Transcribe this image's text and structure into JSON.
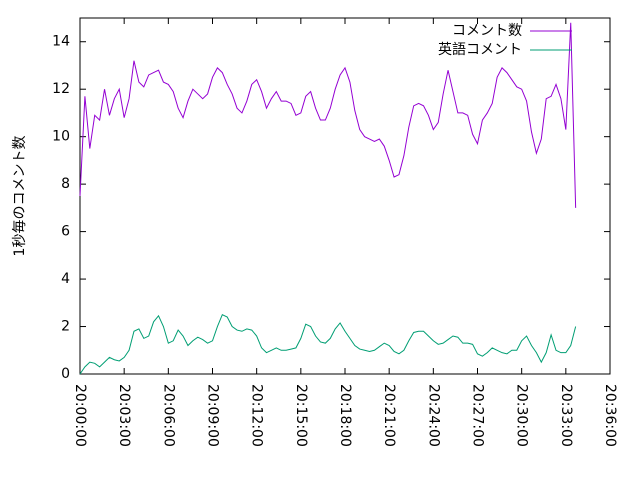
{
  "chart_data": {
    "type": "line",
    "y_label": "1秒毎のコメント数",
    "x": [
      "20:00:00",
      "20:00:20",
      "20:00:40",
      "20:01:00",
      "20:01:20",
      "20:01:40",
      "20:02:00",
      "20:02:20",
      "20:02:40",
      "20:03:00",
      "20:03:20",
      "20:03:40",
      "20:04:00",
      "20:04:20",
      "20:04:40",
      "20:05:00",
      "20:05:20",
      "20:05:40",
      "20:06:00",
      "20:06:20",
      "20:06:40",
      "20:07:00",
      "20:07:20",
      "20:07:40",
      "20:08:00",
      "20:08:20",
      "20:08:40",
      "20:09:00",
      "20:09:20",
      "20:09:40",
      "20:10:00",
      "20:10:20",
      "20:10:40",
      "20:11:00",
      "20:11:20",
      "20:11:40",
      "20:12:00",
      "20:12:20",
      "20:12:40",
      "20:13:00",
      "20:13:20",
      "20:13:40",
      "20:14:00",
      "20:14:20",
      "20:14:40",
      "20:15:00",
      "20:15:20",
      "20:15:40",
      "20:16:00",
      "20:16:20",
      "20:16:40",
      "20:17:00",
      "20:17:20",
      "20:17:40",
      "20:18:00",
      "20:18:20",
      "20:18:40",
      "20:19:00",
      "20:19:20",
      "20:19:40",
      "20:20:00",
      "20:20:20",
      "20:20:40",
      "20:21:00",
      "20:21:20",
      "20:21:40",
      "20:22:00",
      "20:22:20",
      "20:22:40",
      "20:23:00",
      "20:23:20",
      "20:23:40",
      "20:24:00",
      "20:24:20",
      "20:24:40",
      "20:25:00",
      "20:25:20",
      "20:25:40",
      "20:26:00",
      "20:26:20",
      "20:26:40",
      "20:27:00",
      "20:27:20",
      "20:27:40",
      "20:28:00",
      "20:28:20",
      "20:28:40",
      "20:29:00",
      "20:29:20",
      "20:29:40",
      "20:30:00",
      "20:30:20",
      "20:30:40",
      "20:31:00",
      "20:31:20",
      "20:31:40",
      "20:32:00",
      "20:32:20",
      "20:32:40",
      "20:33:00",
      "20:33:20",
      "20:33:40"
    ],
    "series": [
      {
        "name": "コメント数",
        "color": "#9400d3",
        "values": [
          7.5,
          11.7,
          9.5,
          10.9,
          10.7,
          12.0,
          10.9,
          11.6,
          12.0,
          10.8,
          11.6,
          13.2,
          12.3,
          12.1,
          12.6,
          12.7,
          12.8,
          12.3,
          12.2,
          11.9,
          11.2,
          10.8,
          11.5,
          12.0,
          11.8,
          11.6,
          11.8,
          12.5,
          12.9,
          12.7,
          12.2,
          11.8,
          11.2,
          11.0,
          11.5,
          12.2,
          12.4,
          11.9,
          11.2,
          11.6,
          11.9,
          11.5,
          11.5,
          11.4,
          10.9,
          11.0,
          11.7,
          11.9,
          11.2,
          10.7,
          10.7,
          11.2,
          12.0,
          12.6,
          12.9,
          12.3,
          11.1,
          10.3,
          10.0,
          9.9,
          9.8,
          9.9,
          9.6,
          9.0,
          8.3,
          8.4,
          9.2,
          10.4,
          11.3,
          11.4,
          11.3,
          10.9,
          10.3,
          10.6,
          11.8,
          12.8,
          11.9,
          11.0,
          11.0,
          10.9,
          10.1,
          9.7,
          10.7,
          11.0,
          11.4,
          12.5,
          12.9,
          12.7,
          12.4,
          12.1,
          12.0,
          11.5,
          10.2,
          9.3,
          9.9,
          11.6,
          11.7,
          12.2,
          11.6,
          10.3,
          14.8,
          7.0
        ]
      },
      {
        "name": "英語コメント",
        "color": "#009e73",
        "values": [
          0.0,
          0.3,
          0.5,
          0.45,
          0.3,
          0.5,
          0.7,
          0.6,
          0.55,
          0.7,
          1.0,
          1.8,
          1.9,
          1.5,
          1.6,
          2.2,
          2.45,
          2.0,
          1.3,
          1.4,
          1.85,
          1.6,
          1.2,
          1.4,
          1.55,
          1.45,
          1.3,
          1.4,
          2.0,
          2.5,
          2.4,
          2.0,
          1.85,
          1.8,
          1.9,
          1.85,
          1.6,
          1.1,
          0.9,
          1.0,
          1.1,
          1.0,
          1.0,
          1.05,
          1.1,
          1.5,
          2.1,
          2.0,
          1.6,
          1.35,
          1.3,
          1.5,
          1.9,
          2.15,
          1.8,
          1.5,
          1.2,
          1.05,
          1.0,
          0.95,
          1.0,
          1.15,
          1.3,
          1.2,
          0.95,
          0.85,
          1.0,
          1.4,
          1.75,
          1.8,
          1.8,
          1.6,
          1.4,
          1.25,
          1.3,
          1.45,
          1.6,
          1.55,
          1.3,
          1.3,
          1.25,
          0.85,
          0.75,
          0.9,
          1.1,
          1.0,
          0.9,
          0.85,
          1.0,
          1.0,
          1.4,
          1.6,
          1.2,
          0.9,
          0.5,
          0.9,
          1.65,
          1.0,
          0.9,
          0.9,
          1.2,
          2.0
        ]
      }
    ],
    "xlim": [
      "20:00:00",
      "20:36:00"
    ],
    "xticks": [
      "20:00:00",
      "20:03:00",
      "20:06:00",
      "20:09:00",
      "20:12:00",
      "20:15:00",
      "20:18:00",
      "20:21:00",
      "20:24:00",
      "20:27:00",
      "20:30:00",
      "20:33:00",
      "20:36:00"
    ],
    "ylim": [
      0,
      15
    ],
    "yticks": [
      0,
      2,
      4,
      6,
      8,
      10,
      12,
      14
    ],
    "legend": "top-right"
  }
}
